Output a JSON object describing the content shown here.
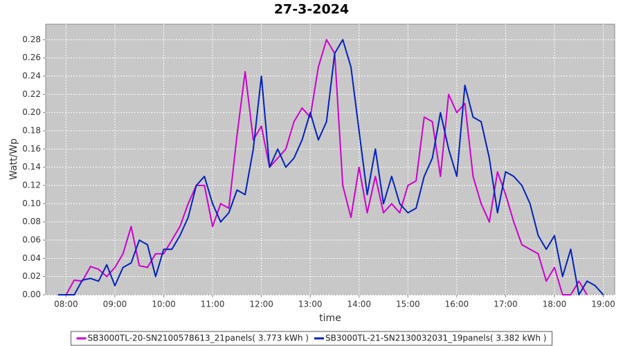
{
  "chart_data": {
    "type": "line",
    "title": "27-3-2024",
    "x_label": "time",
    "y_label": "Watt/Wp",
    "x": [
      "07:50",
      "08:00",
      "08:10",
      "08:20",
      "08:30",
      "08:40",
      "08:50",
      "09:00",
      "09:10",
      "09:20",
      "09:30",
      "09:40",
      "09:50",
      "10:00",
      "10:10",
      "10:20",
      "10:30",
      "10:40",
      "10:50",
      "11:00",
      "11:10",
      "11:20",
      "11:30",
      "11:40",
      "11:50",
      "12:00",
      "12:10",
      "12:20",
      "12:30",
      "12:40",
      "12:50",
      "13:00",
      "13:10",
      "13:20",
      "13:30",
      "13:40",
      "13:50",
      "14:00",
      "14:10",
      "14:20",
      "14:30",
      "14:40",
      "14:50",
      "15:00",
      "15:10",
      "15:20",
      "15:30",
      "15:40",
      "15:50",
      "16:00",
      "16:10",
      "16:20",
      "16:30",
      "16:40",
      "16:50",
      "17:00",
      "17:10",
      "17:20",
      "17:30",
      "17:40",
      "17:50",
      "18:00",
      "18:10",
      "18:20",
      "18:30",
      "18:40",
      "18:50",
      "19:00"
    ],
    "series": [
      {
        "name": "SB3000TL-20-SN2100578613_21panels( 3.773 kWh )",
        "color": "#cc00cc",
        "values": [
          0,
          0,
          0.016,
          0.015,
          0.031,
          0.028,
          0.02,
          0.03,
          0.045,
          0.075,
          0.032,
          0.03,
          0.045,
          0.045,
          0.06,
          0.075,
          0.1,
          0.12,
          0.12,
          0.075,
          0.1,
          0.095,
          0.175,
          0.245,
          0.17,
          0.185,
          0.14,
          0.15,
          0.16,
          0.19,
          0.205,
          0.195,
          0.25,
          0.28,
          0.265,
          0.12,
          0.085,
          0.14,
          0.09,
          0.13,
          0.09,
          0.1,
          0.09,
          0.12,
          0.125,
          0.195,
          0.19,
          0.13,
          0.22,
          0.2,
          0.21,
          0.13,
          0.1,
          0.08,
          0.135,
          0.11,
          0.08,
          0.055,
          0.05,
          0.045,
          0.015,
          0.03,
          0,
          0,
          0.015,
          0,
          null,
          null
        ]
      },
      {
        "name": "SB3000TL-21-SN2130032031_19panels( 3.382 kWh )",
        "color": "#0022bb",
        "values": [
          0,
          0,
          0,
          0.016,
          0.018,
          0.015,
          0.033,
          0.01,
          0.03,
          0.035,
          0.06,
          0.055,
          0.02,
          0.05,
          0.05,
          0.065,
          0.085,
          0.12,
          0.13,
          0.1,
          0.08,
          0.09,
          0.115,
          0.11,
          0.16,
          0.24,
          0.14,
          0.16,
          0.14,
          0.15,
          0.17,
          0.2,
          0.17,
          0.19,
          0.265,
          0.28,
          0.25,
          0.18,
          0.11,
          0.16,
          0.1,
          0.13,
          0.1,
          0.09,
          0.095,
          0.13,
          0.15,
          0.2,
          0.16,
          0.13,
          0.23,
          0.195,
          0.19,
          0.15,
          0.09,
          0.135,
          0.13,
          0.12,
          0.1,
          0.065,
          0.05,
          0.065,
          0.02,
          0.05,
          0,
          0.015,
          0.01,
          0
        ]
      }
    ],
    "xlim": [
      "07:35",
      "19:14"
    ],
    "xticks": [
      "08:00",
      "09:00",
      "10:00",
      "11:00",
      "12:00",
      "13:00",
      "14:00",
      "15:00",
      "16:00",
      "17:00",
      "18:00",
      "19:00"
    ],
    "ylim": [
      0,
      0.297
    ],
    "yticks": [
      {
        "value": 0,
        "label": "0.00"
      },
      0.02,
      0.04,
      0.06,
      0.08,
      {
        "value": 0.1,
        "label": "0.10"
      },
      0.12,
      0.14,
      0.16,
      0.18,
      {
        "value": 0.2,
        "label": "0.20"
      },
      0.22,
      0.24,
      0.26,
      0.28
    ],
    "grid": true,
    "legend": "bottom"
  }
}
